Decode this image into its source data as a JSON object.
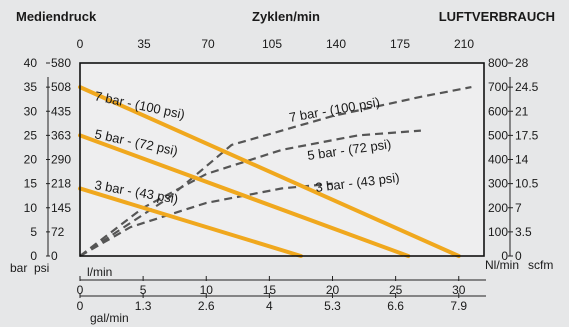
{
  "chart_data": {
    "type": "line",
    "headers": {
      "left": "Mediendruck",
      "center": "Zyklen/min",
      "right": "LUFTVERBRAUCH"
    },
    "top_axis": {
      "label": "Zyklen/min",
      "ticks": [
        "0",
        "35",
        "70",
        "105",
        "140",
        "175",
        "210"
      ]
    },
    "left_axis": {
      "unit_bar": "bar",
      "unit_psi": "psi",
      "ticks": [
        {
          "bar": "0",
          "psi": "0"
        },
        {
          "bar": "5",
          "psi": "72"
        },
        {
          "bar": "10",
          "psi": "145"
        },
        {
          "bar": "15",
          "psi": "218"
        },
        {
          "bar": "20",
          "psi": "290"
        },
        {
          "bar": "25",
          "psi": "363"
        },
        {
          "bar": "30",
          "psi": "435"
        },
        {
          "bar": "35",
          "psi": "508"
        },
        {
          "bar": "40",
          "psi": "580"
        }
      ]
    },
    "right_axis": {
      "unit_nl": "Nl/min",
      "unit_scfm": "scfm",
      "ticks": [
        {
          "nl": "0",
          "scfm": "0"
        },
        {
          "nl": "100",
          "scfm": "3.5"
        },
        {
          "nl": "200",
          "scfm": "7"
        },
        {
          "nl": "300",
          "scfm": "10.5"
        },
        {
          "nl": "400",
          "scfm": "14"
        },
        {
          "nl": "500",
          "scfm": "17.5"
        },
        {
          "nl": "600",
          "scfm": "21"
        },
        {
          "nl": "700",
          "scfm": "24.5"
        },
        {
          "nl": "800",
          "scfm": "28"
        }
      ]
    },
    "bottom_axis_lpm": {
      "unit": "l/min",
      "ticks": [
        "0",
        "5",
        "10",
        "15",
        "20",
        "25",
        "30"
      ]
    },
    "bottom_axis_gpm": {
      "unit": "gal/min",
      "ticks": [
        "0",
        "1.3",
        "2.6",
        "4",
        "5.3",
        "6.6",
        "7.9"
      ]
    },
    "xlim": [
      0,
      32
    ],
    "ylim": [
      0,
      40
    ],
    "colors": {
      "pressure_lines": "#f0a81e",
      "air_lines": "#555555",
      "frame": "#111111"
    },
    "pressure_series": [
      {
        "name": "7 bar - (100 psi)",
        "points": [
          [
            0,
            35
          ],
          [
            30,
            0
          ]
        ]
      },
      {
        "name": "5 bar - (72 psi)",
        "points": [
          [
            0,
            25
          ],
          [
            26,
            0
          ]
        ]
      },
      {
        "name": "3 bar - (43 psi)",
        "points": [
          [
            0,
            14
          ],
          [
            17.5,
            0
          ]
        ]
      }
    ],
    "air_series": [
      {
        "name": "7 bar - (100 psi)",
        "points": [
          [
            0,
            0
          ],
          [
            7,
            12
          ],
          [
            12,
            23
          ],
          [
            20,
            29
          ],
          [
            27,
            33
          ],
          [
            31,
            35
          ]
        ]
      },
      {
        "name": "5 bar - (72 psi)",
        "points": [
          [
            0,
            0
          ],
          [
            5,
            10
          ],
          [
            10,
            17
          ],
          [
            16,
            22
          ],
          [
            22,
            25
          ],
          [
            27,
            26
          ]
        ]
      },
      {
        "name": "3 bar - (43 psi)",
        "points": [
          [
            0,
            0
          ],
          [
            4,
            6
          ],
          [
            10,
            11
          ],
          [
            16,
            14
          ],
          [
            20,
            15
          ]
        ]
      }
    ]
  }
}
